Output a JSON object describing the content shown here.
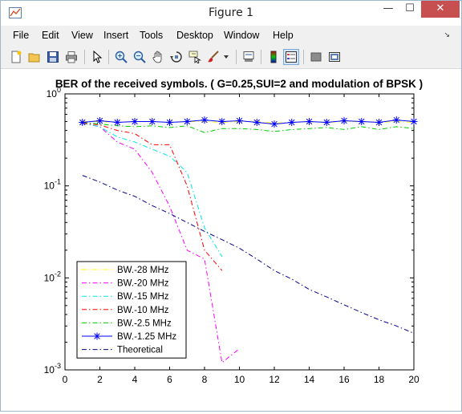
{
  "window": {
    "title": "Figure 1",
    "minimize": "—",
    "maximize": "☐",
    "close": "✕"
  },
  "menu": [
    "File",
    "Edit",
    "View",
    "Insert",
    "Tools",
    "Desktop",
    "Window",
    "Help"
  ],
  "toolbar": {
    "icons": [
      "new-figure-icon",
      "open-file-icon",
      "save-icon",
      "print-icon",
      "edit-plot-arrow-icon",
      "zoom-in-icon",
      "zoom-out-icon",
      "pan-hand-icon",
      "rotate-3d-icon",
      "data-cursor-icon",
      "brush-icon",
      "brush-dropdown-icon",
      "link-plot-icon",
      "insert-colorbar-icon",
      "insert-legend-icon",
      "hide-plot-tools-icon",
      "show-plot-tools-icon"
    ]
  },
  "chart_data": {
    "type": "line",
    "title": "BER of the received symbols. ( G=0.25,SUI=2 and modulation of BPSK )",
    "xlabel": "",
    "ylabel": "",
    "xlim": [
      0,
      20
    ],
    "ylim": [
      0.001,
      1
    ],
    "yscale": "log",
    "grid": false,
    "legend_position": "bottom-left",
    "x_ticks": [
      "0",
      "2",
      "4",
      "6",
      "8",
      "10",
      "12",
      "14",
      "16",
      "18",
      "20"
    ],
    "y_ticks": [
      {
        "base": "10",
        "exp": "0",
        "value": 1
      },
      {
        "base": "10",
        "exp": "-1",
        "value": 0.1
      },
      {
        "base": "10",
        "exp": "-2",
        "value": 0.01
      },
      {
        "base": "10",
        "exp": "-3",
        "value": 0.001
      }
    ],
    "series": [
      {
        "name": "BW.-28 MHz",
        "color": "#ffff00",
        "dash": "6 3 1.5 3",
        "marker": "none",
        "x": [
          1,
          2,
          3,
          4,
          5,
          6,
          7,
          8,
          9,
          10,
          11,
          12,
          13,
          14,
          15,
          16,
          17,
          18,
          19,
          20
        ],
        "y": [
          0.5,
          0.5,
          0.49,
          0.5,
          0.5,
          0.49,
          0.5,
          0.5,
          0.49,
          0.5,
          0.5,
          0.48,
          0.49,
          0.5,
          0.49,
          0.5,
          0.5,
          0.49,
          0.5,
          0.49
        ]
      },
      {
        "name": "BW.-20 MHz",
        "color": "#ff00ff",
        "dash": "6 3 1.5 3",
        "marker": "none",
        "x": [
          1,
          2,
          3,
          4,
          5,
          6,
          7,
          8,
          9,
          10
        ],
        "y": [
          0.48,
          0.44,
          0.3,
          0.25,
          0.14,
          0.06,
          0.02,
          0.016,
          0.0012,
          0.0017
        ]
      },
      {
        "name": "BW.-15 MHz",
        "color": "#00e5e5",
        "dash": "6 3 1.5 3",
        "marker": "none",
        "x": [
          1,
          2,
          3,
          4,
          5,
          6,
          7,
          8,
          9
        ],
        "y": [
          0.48,
          0.44,
          0.34,
          0.3,
          0.25,
          0.21,
          0.14,
          0.035,
          0.017
        ]
      },
      {
        "name": "BW.-10 MHz",
        "color": "#ff0000",
        "dash": "6 3 1.5 3",
        "marker": "none",
        "x": [
          1,
          2,
          3,
          4,
          5,
          6,
          7,
          8,
          9
        ],
        "y": [
          0.48,
          0.46,
          0.4,
          0.37,
          0.28,
          0.28,
          0.1,
          0.02,
          0.012
        ]
      },
      {
        "name": "BW.-2.5 MHz",
        "color": "#00cc00",
        "dash": "6 3 1.5 3",
        "marker": "none",
        "x": [
          1,
          2,
          3,
          4,
          5,
          6,
          7,
          8,
          9,
          10,
          11,
          12,
          13,
          14,
          15,
          16,
          17,
          18,
          19,
          20
        ],
        "y": [
          0.49,
          0.47,
          0.45,
          0.44,
          0.45,
          0.43,
          0.45,
          0.38,
          0.42,
          0.42,
          0.41,
          0.39,
          0.41,
          0.42,
          0.43,
          0.41,
          0.44,
          0.41,
          0.44,
          0.42
        ]
      },
      {
        "name": "BW.-1.25 MHz",
        "color": "#0000ff",
        "dash": "none",
        "marker": "star",
        "x": [
          1,
          2,
          3,
          4,
          5,
          6,
          7,
          8,
          9,
          10,
          11,
          12,
          13,
          14,
          15,
          16,
          17,
          18,
          19,
          20
        ],
        "y": [
          0.49,
          0.51,
          0.49,
          0.5,
          0.5,
          0.49,
          0.5,
          0.52,
          0.5,
          0.51,
          0.49,
          0.47,
          0.49,
          0.5,
          0.49,
          0.51,
          0.5,
          0.49,
          0.52,
          0.5
        ]
      },
      {
        "name": "Theoretical",
        "color": "#00008b",
        "dash": "6 3 1.5 3",
        "marker": "none",
        "x": [
          1,
          2,
          3,
          4,
          5,
          6,
          7,
          8,
          9,
          10,
          11,
          12,
          13,
          14,
          15,
          16,
          17,
          18,
          19,
          20
        ],
        "y": [
          0.13,
          0.11,
          0.09,
          0.077,
          0.061,
          0.05,
          0.04,
          0.032,
          0.026,
          0.021,
          0.016,
          0.012,
          0.0097,
          0.0075,
          0.0062,
          0.0051,
          0.0042,
          0.0035,
          0.003,
          0.0025
        ]
      }
    ]
  }
}
